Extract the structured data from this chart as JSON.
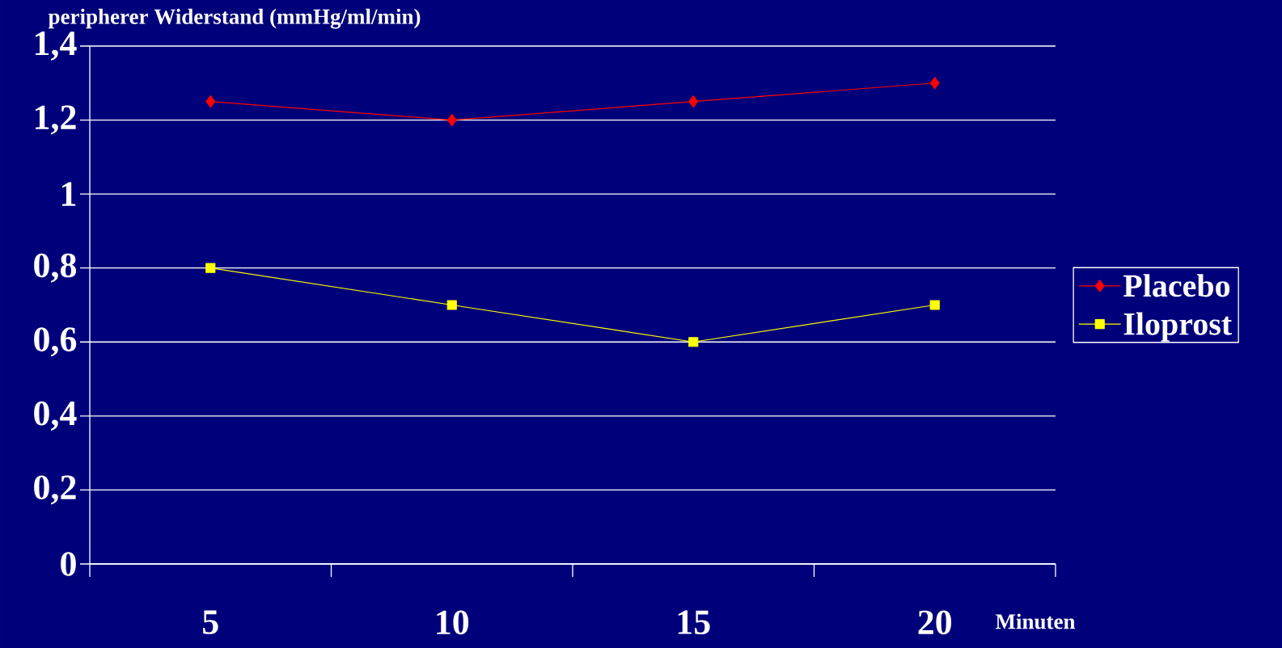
{
  "chart_data": {
    "type": "line",
    "ylabel": "peripherer Widerstand (mmHg/ml/min)",
    "xlabel": "Minuten",
    "categories": [
      "5",
      "10",
      "15",
      "20"
    ],
    "series": [
      {
        "name": "Placebo",
        "color": "#ff0000",
        "marker": "diamond",
        "values": [
          1.25,
          1.2,
          1.25,
          1.3
        ]
      },
      {
        "name": "Iloprost",
        "color": "#ffff00",
        "marker": "square",
        "values": [
          0.8,
          0.7,
          0.6,
          0.7
        ]
      }
    ],
    "ylim": [
      0,
      1.4
    ],
    "yticks": [
      0,
      {
        "value": 0.2,
        "label": "0,2"
      },
      {
        "value": 0.4,
        "label": "0,4"
      },
      {
        "value": 0.6,
        "label": "0,6"
      },
      {
        "value": 0.8,
        "label": "0,8"
      },
      1,
      {
        "value": 1.2,
        "label": "1,2"
      },
      {
        "value": 1.4,
        "label": "1,4"
      }
    ],
    "grid": "y",
    "legend": "right",
    "line_style": "solid"
  }
}
